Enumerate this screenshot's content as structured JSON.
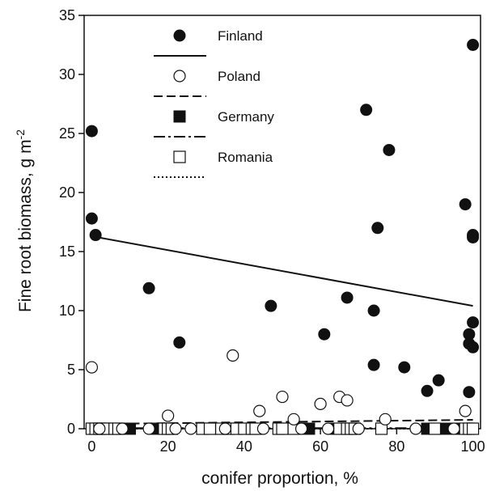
{
  "chart_data": {
    "type": "scatter",
    "xlabel": "conifer proportion, %",
    "ylabel_main": "Fine root biomass, g m",
    "ylabel_sup": "-2",
    "xlim": [
      -2,
      102
    ],
    "ylim": [
      0,
      35
    ],
    "xticks": [
      0,
      20,
      40,
      60,
      80,
      100
    ],
    "yticks": [
      0,
      5,
      10,
      15,
      20,
      25,
      30,
      35
    ],
    "grid": false,
    "legend_position": "top-left",
    "series": [
      {
        "name": "Finland",
        "marker": "filled-circle",
        "line_style": "solid",
        "points": [
          [
            0,
            25.2
          ],
          [
            0,
            17.8
          ],
          [
            1,
            16.4
          ],
          [
            15,
            11.9
          ],
          [
            23,
            7.3
          ],
          [
            47,
            10.4
          ],
          [
            61,
            8.0
          ],
          [
            67,
            11.1
          ],
          [
            72,
            27.0
          ],
          [
            74,
            10.0
          ],
          [
            74,
            5.4
          ],
          [
            75,
            17.0
          ],
          [
            78,
            23.6
          ],
          [
            82,
            5.2
          ],
          [
            88,
            3.2
          ],
          [
            91,
            4.1
          ],
          [
            98,
            19.0
          ],
          [
            99,
            8.0
          ],
          [
            99,
            3.1
          ],
          [
            99,
            7.2
          ],
          [
            100,
            32.5
          ],
          [
            100,
            16.4
          ],
          [
            100,
            16.2
          ],
          [
            100,
            9.0
          ],
          [
            100,
            6.9
          ]
        ],
        "fit": [
          [
            0,
            16.3
          ],
          [
            100,
            10.4
          ]
        ]
      },
      {
        "name": "Poland",
        "marker": "open-circle",
        "line_style": "dashed",
        "points": [
          [
            0,
            5.2
          ],
          [
            20,
            1.1
          ],
          [
            37,
            6.2
          ],
          [
            44,
            1.5
          ],
          [
            50,
            2.7
          ],
          [
            53,
            0.8
          ],
          [
            60,
            2.1
          ],
          [
            65,
            2.7
          ],
          [
            67,
            2.4
          ],
          [
            77,
            0.8
          ],
          [
            98,
            1.5
          ],
          [
            2,
            0.0
          ],
          [
            8,
            0.0
          ],
          [
            15,
            0.0
          ],
          [
            22,
            0.0
          ],
          [
            26,
            0.0
          ],
          [
            35,
            0.0
          ],
          [
            45,
            0.0
          ],
          [
            55,
            0.0
          ],
          [
            62,
            0.0
          ],
          [
            70,
            0.0
          ],
          [
            85,
            0.0
          ],
          [
            95,
            0.0
          ]
        ],
        "fit": [
          [
            0,
            0.4
          ],
          [
            100,
            0.75
          ]
        ]
      },
      {
        "name": "Germany",
        "marker": "filled-square",
        "line_style": "dash-dot",
        "points": [
          [
            5,
            0.0
          ],
          [
            9,
            0.0
          ],
          [
            10,
            0.0
          ],
          [
            17,
            0.0
          ],
          [
            33,
            0.0
          ],
          [
            41,
            0.0
          ],
          [
            51,
            0.0
          ],
          [
            57,
            0.0
          ],
          [
            64,
            0.0
          ],
          [
            88,
            0.0
          ],
          [
            93,
            0.0
          ],
          [
            96,
            0.0
          ]
        ],
        "fit": [
          [
            0,
            0.05
          ],
          [
            100,
            0.05
          ]
        ]
      },
      {
        "name": "Romania",
        "marker": "open-square",
        "line_style": "dotted",
        "points": [
          [
            0,
            0.0
          ],
          [
            1,
            0.0
          ],
          [
            2,
            0.0
          ],
          [
            3,
            0.0
          ],
          [
            4,
            0.0
          ],
          [
            6,
            0.0
          ],
          [
            7,
            0.0
          ],
          [
            19,
            0.0
          ],
          [
            20,
            0.0
          ],
          [
            21,
            0.0
          ],
          [
            29,
            0.0
          ],
          [
            31,
            0.0
          ],
          [
            34,
            0.0
          ],
          [
            36,
            0.0
          ],
          [
            38,
            0.0
          ],
          [
            40,
            0.0
          ],
          [
            42,
            0.0
          ],
          [
            43,
            0.0
          ],
          [
            49,
            0.0
          ],
          [
            50,
            0.0
          ],
          [
            53,
            0.0
          ],
          [
            65,
            0.0
          ],
          [
            67,
            0.0
          ],
          [
            68,
            0.0
          ],
          [
            69,
            0.0
          ],
          [
            76,
            0.0
          ],
          [
            90,
            0.0
          ],
          [
            98,
            0.0
          ],
          [
            99,
            0.0
          ],
          [
            100,
            0.0
          ]
        ],
        "fit": [
          [
            0,
            0.0
          ],
          [
            100,
            0.0
          ]
        ]
      }
    ]
  }
}
